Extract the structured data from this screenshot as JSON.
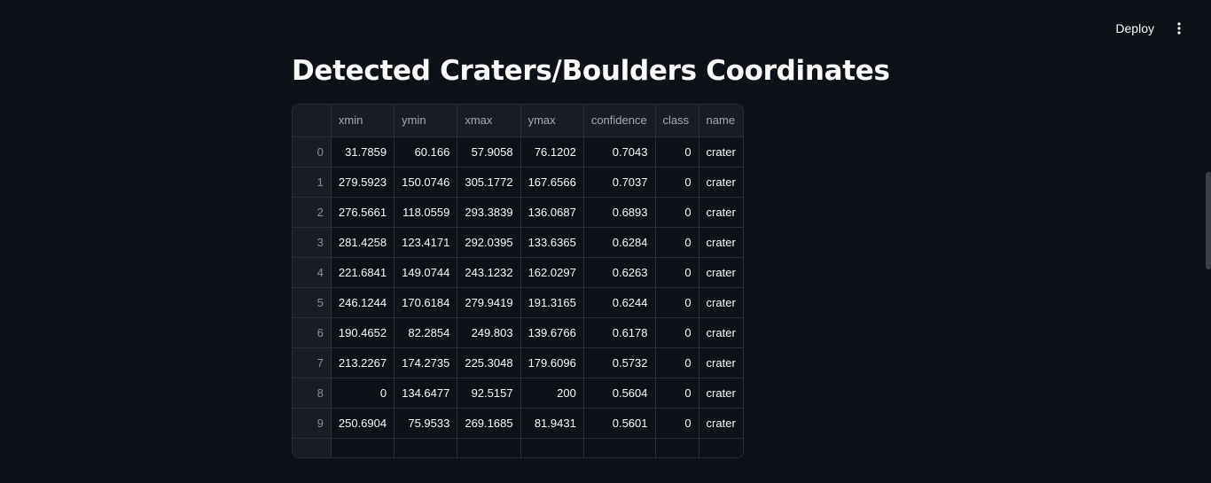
{
  "header": {
    "deploy_label": "Deploy",
    "menu_icon": "vertical-dots-icon"
  },
  "main": {
    "title": "Detected Craters/Boulders Coordinates"
  },
  "table": {
    "columns": [
      "",
      "xmin",
      "ymin",
      "xmax",
      "ymax",
      "confidence",
      "class",
      "name"
    ],
    "rows": [
      [
        "0",
        "31.7859",
        "60.166",
        "57.9058",
        "76.1202",
        "0.7043",
        "0",
        "crater"
      ],
      [
        "1",
        "279.5923",
        "150.0746",
        "305.1772",
        "167.6566",
        "0.7037",
        "0",
        "crater"
      ],
      [
        "2",
        "276.5661",
        "118.0559",
        "293.3839",
        "136.0687",
        "0.6893",
        "0",
        "crater"
      ],
      [
        "3",
        "281.4258",
        "123.4171",
        "292.0395",
        "133.6365",
        "0.6284",
        "0",
        "crater"
      ],
      [
        "4",
        "221.6841",
        "149.0744",
        "243.1232",
        "162.0297",
        "0.6263",
        "0",
        "crater"
      ],
      [
        "5",
        "246.1244",
        "170.6184",
        "279.9419",
        "191.3165",
        "0.6244",
        "0",
        "crater"
      ],
      [
        "6",
        "190.4652",
        "82.2854",
        "249.803",
        "139.6766",
        "0.6178",
        "0",
        "crater"
      ],
      [
        "7",
        "213.2267",
        "174.2735",
        "225.3048",
        "179.6096",
        "0.5732",
        "0",
        "crater"
      ],
      [
        "8",
        "0",
        "134.6477",
        "92.5157",
        "200",
        "0.5604",
        "0",
        "crater"
      ],
      [
        "9",
        "250.6904",
        "75.9533",
        "269.1685",
        "81.9431",
        "0.5601",
        "0",
        "crater"
      ],
      [
        "",
        "",
        "",
        "",
        "",
        "",
        "",
        ""
      ]
    ]
  }
}
